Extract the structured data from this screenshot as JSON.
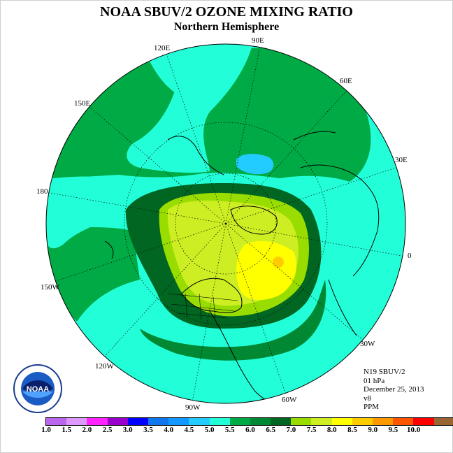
{
  "header": {
    "title": "NOAA SBUV/2 OZONE MIXING RATIO",
    "subtitle": "Northern Hemisphere"
  },
  "map": {
    "projection": "north-polar-stereographic",
    "background_color": "#22ffd8",
    "longitude_labels": [
      "90E",
      "60E",
      "30E",
      "0",
      "30W",
      "60W",
      "90W",
      "120W",
      "150W",
      "180",
      "150E",
      "120E"
    ]
  },
  "info": {
    "satellite": "N19 SBUV/2",
    "pressure_level": "01 hPa",
    "date": "December 25, 2013",
    "version": "v8",
    "units": "PPM"
  },
  "colorbar": {
    "colors": [
      "#bb66ee",
      "#dd99ff",
      "#ff22ff",
      "#9900cc",
      "#0000ff",
      "#1177ee",
      "#1199ff",
      "#22ccff",
      "#22ffd8",
      "#00aa44",
      "#008833",
      "#006622",
      "#99dd00",
      "#ccee22",
      "#ffff00",
      "#ffcc00",
      "#ff9900",
      "#ff5500",
      "#ff0000",
      "#996633"
    ],
    "labels": [
      "1.0",
      "1.5",
      "2.0",
      "2.5",
      "3.0",
      "3.5",
      "4.0",
      "4.5",
      "5.0",
      "5.5",
      "6.0",
      "6.5",
      "7.0",
      "7.5",
      "8.0",
      "8.5",
      "9.0",
      "9.5",
      "10.0"
    ]
  },
  "logo": {
    "text": "NOAA"
  }
}
